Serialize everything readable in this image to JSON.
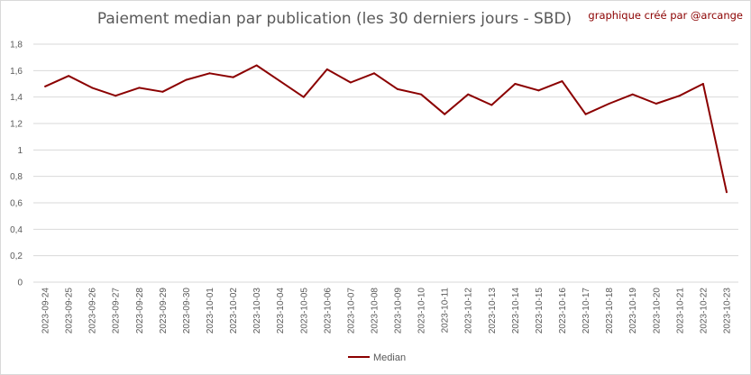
{
  "header": {
    "title": "Paiement median par publication (les 30 derniers jours - SBD)",
    "credit": "graphique créé par @arcange"
  },
  "colors": {
    "series": "#8b0000",
    "grid": "#d9d9d9",
    "text": "#595959"
  },
  "chart_data": {
    "type": "line",
    "title": "Paiement median par publication (les 30 derniers jours - SBD)",
    "xlabel": "",
    "ylabel": "",
    "ylim": [
      0,
      1.8
    ],
    "yticks": [
      "0",
      "0,2",
      "0,4",
      "0,6",
      "0,8",
      "1",
      "1,2",
      "1,4",
      "1,6",
      "1,8"
    ],
    "grid": "horizontal",
    "legend": "bottom",
    "categories": [
      "2023-09-24",
      "2023-09-25",
      "2023-09-26",
      "2023-09-27",
      "2023-09-28",
      "2023-09-29",
      "2023-09-30",
      "2023-10-01",
      "2023-10-02",
      "2023-10-03",
      "2023-10-04",
      "2023-10-05",
      "2023-10-06",
      "2023-10-07",
      "2023-10-08",
      "2023-10-09",
      "2023-10-10",
      "2023-10-11",
      "2023-10-12",
      "2023-10-13",
      "2023-10-14",
      "2023-10-15",
      "2023-10-16",
      "2023-10-17",
      "2023-10-18",
      "2023-10-19",
      "2023-10-20",
      "2023-10-21",
      "2023-10-22",
      "2023-10-23"
    ],
    "series": [
      {
        "name": "Median",
        "values": [
          1.48,
          1.56,
          1.47,
          1.41,
          1.47,
          1.44,
          1.53,
          1.58,
          1.55,
          1.64,
          1.52,
          1.4,
          1.61,
          1.51,
          1.58,
          1.46,
          1.42,
          1.27,
          1.42,
          1.34,
          1.5,
          1.45,
          1.52,
          1.27,
          1.35,
          1.42,
          1.35,
          1.41,
          1.5,
          0.68
        ]
      }
    ]
  }
}
